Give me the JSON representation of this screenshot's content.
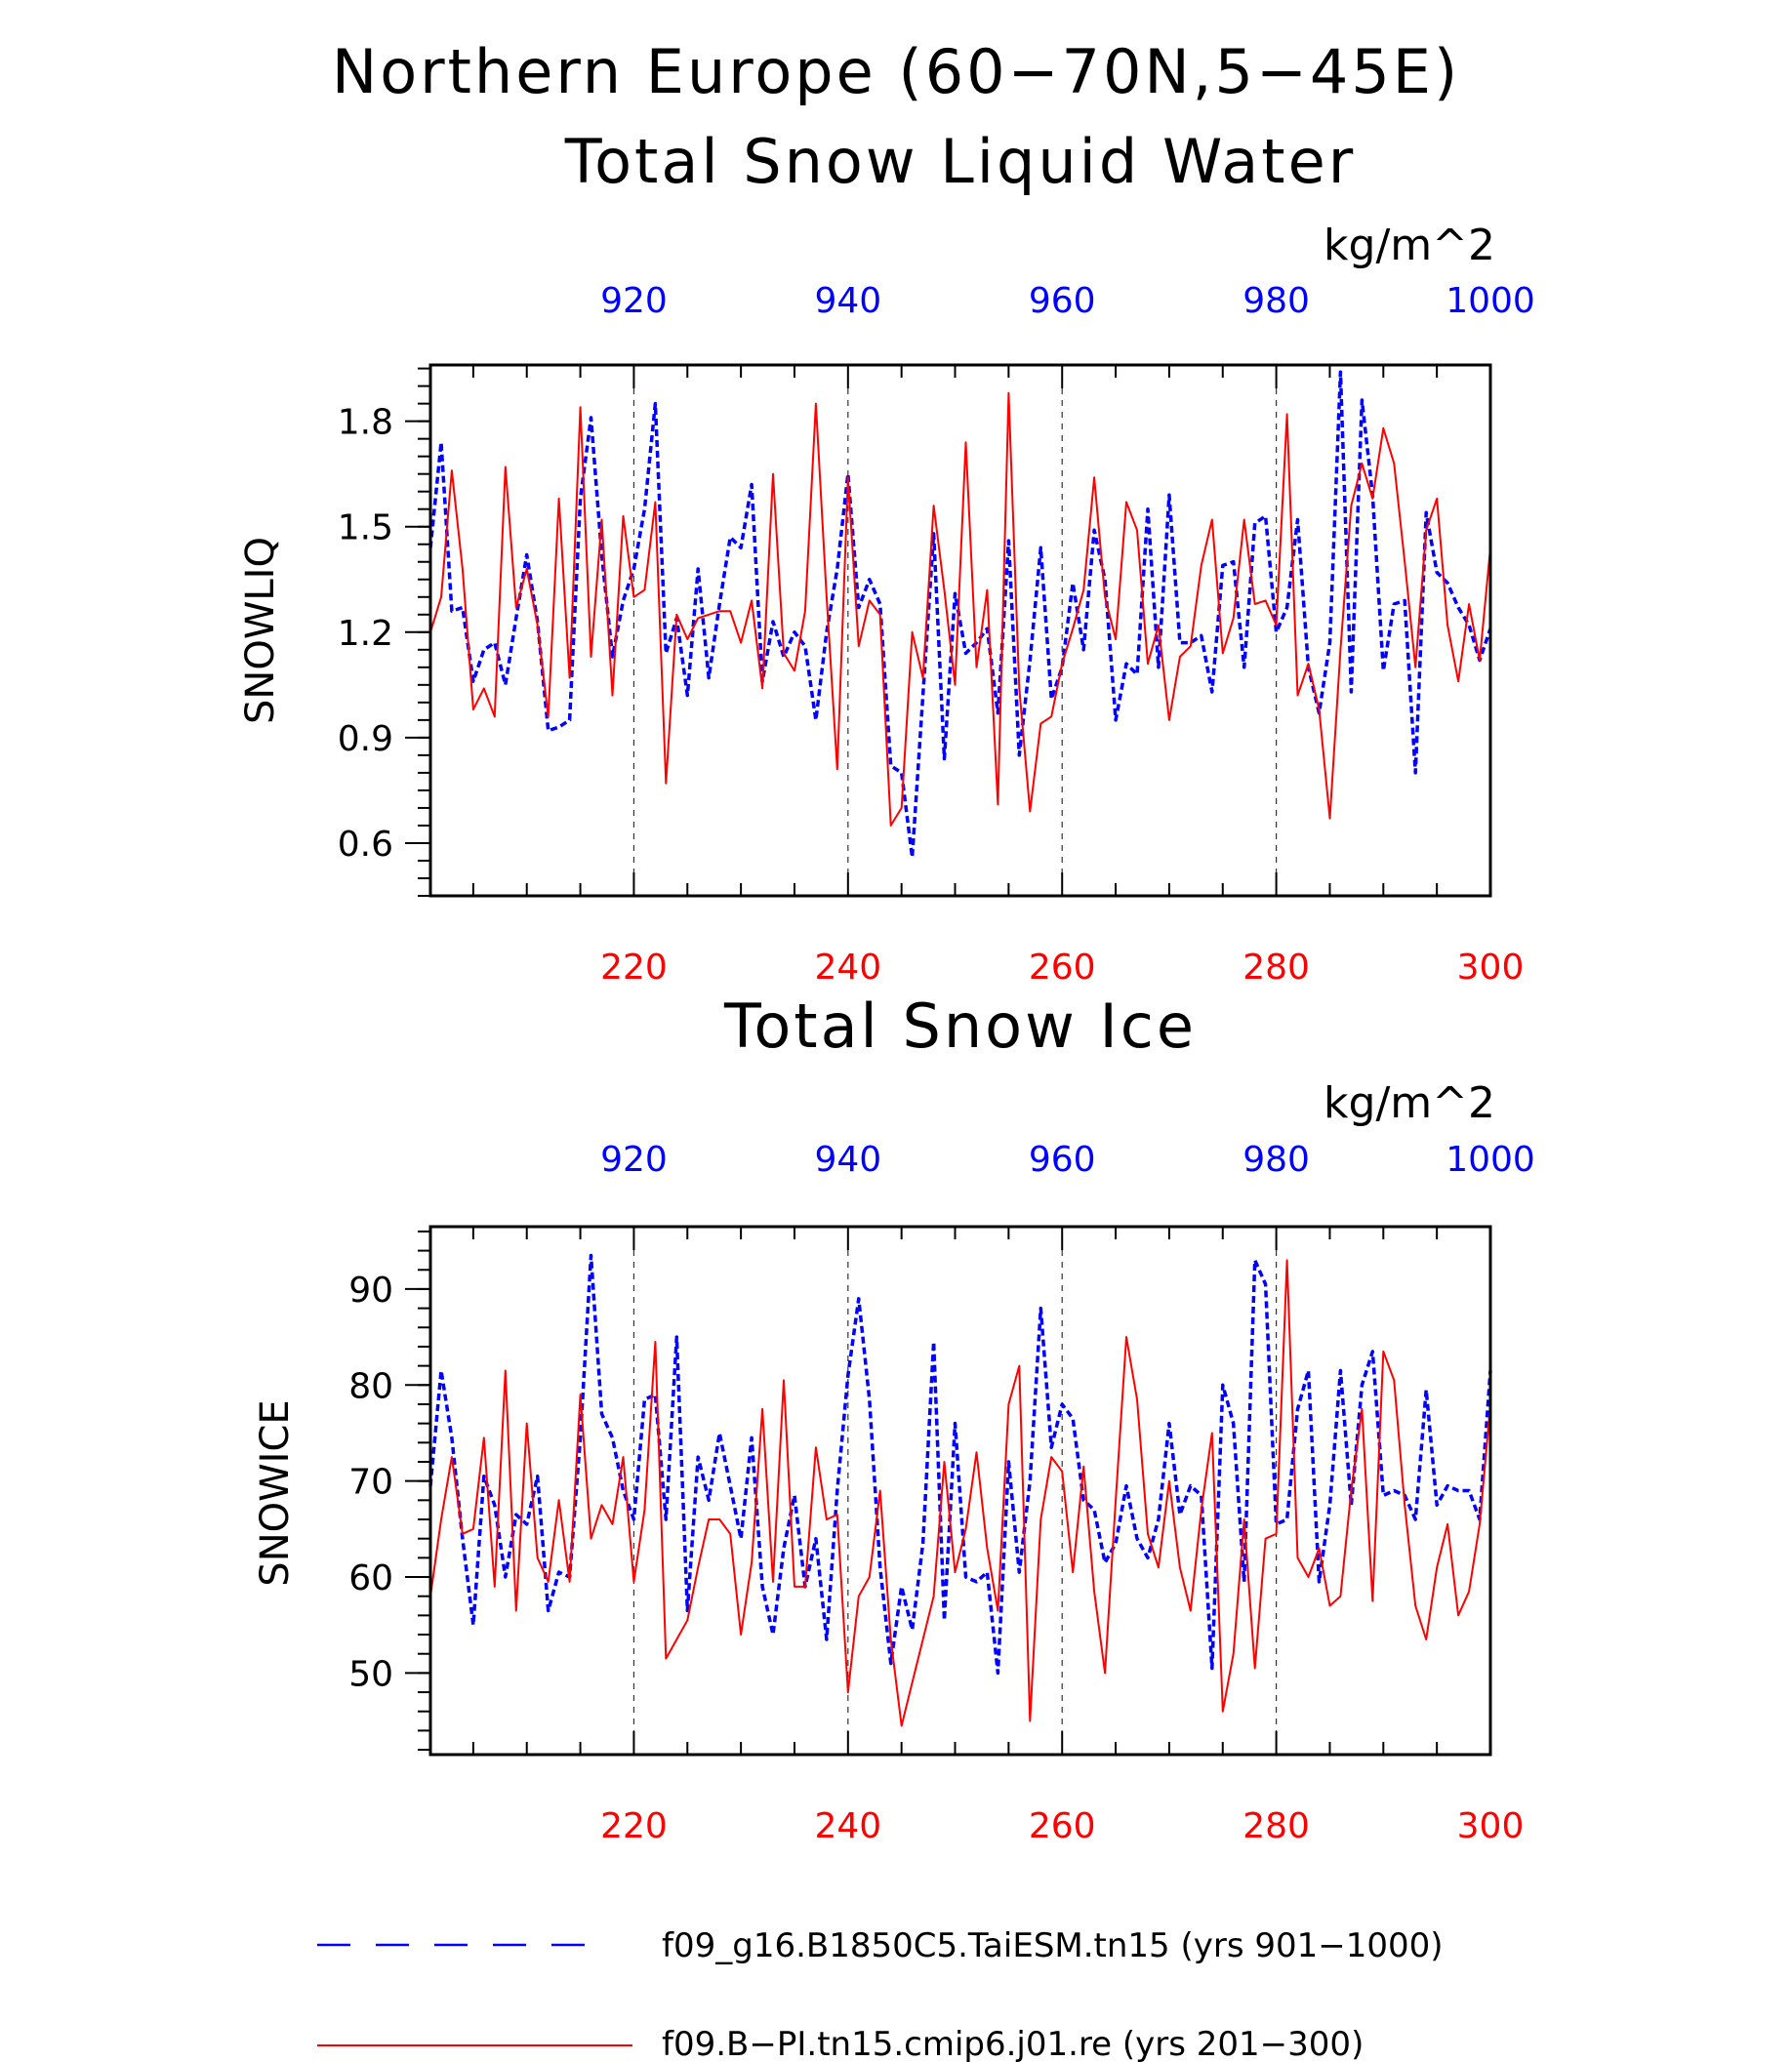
{
  "title_line1": "Northern Europe (60−70N,5−45E)",
  "title_line2": "Total Snow Liquid Water",
  "colors": {
    "series_blue": "#0000ff",
    "series_red": "#ff0000",
    "grid": "#000000"
  },
  "chart_data": [
    {
      "type": "line",
      "title": "Total Snow Liquid Water",
      "ylabel": "SNOWLIQ",
      "units": "kg/m^2",
      "ylim": [
        0.45,
        1.96
      ],
      "yticks": [
        "0.6",
        "0.9",
        "1.2",
        "1.5",
        "1.8"
      ],
      "x_bottom": {
        "range": [
          201,
          300
        ],
        "ticks": [
          "220",
          "240",
          "260",
          "280",
          "300"
        ]
      },
      "x_top": {
        "range": [
          901,
          1000
        ],
        "ticks": [
          "920",
          "940",
          "960",
          "980",
          "1000"
        ]
      },
      "grid": "vertical dashed at major ticks",
      "series": [
        {
          "name": "f09_g16.B1850C5.TaiESM.tn15 (yrs 901−1000)",
          "style": "dashed",
          "axis": "top",
          "x_start": 901,
          "values": [
            1.44,
            1.74,
            1.26,
            1.27,
            1.06,
            1.15,
            1.17,
            1.05,
            1.24,
            1.42,
            1.23,
            0.92,
            0.93,
            0.95,
            1.58,
            1.81,
            1.42,
            1.13,
            1.29,
            1.38,
            1.55,
            1.85,
            1.14,
            1.24,
            1.02,
            1.38,
            1.07,
            1.28,
            1.47,
            1.44,
            1.62,
            1.06,
            1.23,
            1.13,
            1.2,
            1.16,
            0.95,
            1.2,
            1.38,
            1.65,
            1.27,
            1.35,
            1.28,
            0.82,
            0.8,
            0.56,
            1.02,
            1.48,
            0.84,
            1.31,
            1.14,
            1.17,
            1.21,
            0.97,
            1.46,
            0.85,
            1.12,
            1.44,
            1.01,
            1.1,
            1.34,
            1.15,
            1.49,
            1.35,
            0.95,
            1.11,
            1.08,
            1.55,
            1.1,
            1.59,
            1.17,
            1.17,
            1.19,
            1.03,
            1.39,
            1.4,
            1.1,
            1.51,
            1.53,
            1.2,
            1.27,
            1.52,
            1.1,
            0.97,
            1.17,
            1.94,
            1.03,
            1.86,
            1.59,
            1.09,
            1.28,
            1.29,
            0.8,
            1.54,
            1.37,
            1.34,
            1.27,
            1.22,
            1.12,
            1.21
          ]
        },
        {
          "name": "f09.B−PI.tn15.cmip6.j01.re (yrs 201−300)",
          "style": "solid",
          "axis": "bottom",
          "x_start": 201,
          "values": [
            1.2,
            1.3,
            1.66,
            1.38,
            0.98,
            1.04,
            0.96,
            1.67,
            1.27,
            1.38,
            1.22,
            0.96,
            1.58,
            1.07,
            1.84,
            1.13,
            1.52,
            1.02,
            1.53,
            1.3,
            1.32,
            1.57,
            0.77,
            1.25,
            1.18,
            1.24,
            1.25,
            1.26,
            1.26,
            1.17,
            1.29,
            1.04,
            1.65,
            1.14,
            1.09,
            1.26,
            1.85,
            1.3,
            0.81,
            1.64,
            1.16,
            1.29,
            1.25,
            0.65,
            0.7,
            1.2,
            1.07,
            1.56,
            1.32,
            1.05,
            1.74,
            1.1,
            1.32,
            0.71,
            1.88,
            1.04,
            0.69,
            0.94,
            0.96,
            1.11,
            1.21,
            1.32,
            1.64,
            1.3,
            1.18,
            1.57,
            1.49,
            1.11,
            1.22,
            0.95,
            1.13,
            1.16,
            1.39,
            1.52,
            1.14,
            1.24,
            1.52,
            1.28,
            1.29,
            1.22,
            1.82,
            1.02,
            1.11,
            0.98,
            0.67,
            1.15,
            1.56,
            1.68,
            1.58,
            1.78,
            1.68,
            1.4,
            1.1,
            1.49,
            1.58,
            1.22,
            1.06,
            1.28,
            1.12,
            1.44
          ]
        }
      ]
    },
    {
      "type": "line",
      "title": "Total Snow Ice",
      "ylabel": "SNOWICE",
      "units": "kg/m^2",
      "ylim": [
        41.5,
        96.5
      ],
      "yticks": [
        "50",
        "60",
        "70",
        "80",
        "90"
      ],
      "x_bottom": {
        "range": [
          201,
          300
        ],
        "ticks": [
          "220",
          "240",
          "260",
          "280",
          "300"
        ]
      },
      "x_top": {
        "range": [
          901,
          1000
        ],
        "ticks": [
          "920",
          "940",
          "960",
          "980",
          "1000"
        ]
      },
      "grid": "vertical dashed at major ticks",
      "series": [
        {
          "name": "f09_g16.B1850C5.TaiESM.tn15 (yrs 901−1000)",
          "style": "dashed",
          "axis": "top",
          "x_start": 901,
          "values": [
            69.5,
            81.5,
            74.5,
            64.0,
            55.0,
            70.5,
            67.5,
            60.0,
            66.5,
            65.5,
            70.5,
            56.5,
            60.5,
            60.0,
            74.5,
            93.5,
            77.0,
            74.5,
            69.0,
            66.0,
            78.5,
            79.0,
            66.0,
            85.0,
            56.5,
            72.5,
            68.0,
            75.0,
            69.5,
            64.0,
            74.5,
            59.0,
            54.0,
            63.0,
            68.5,
            59.0,
            64.0,
            53.5,
            69.0,
            81.0,
            89.0,
            78.5,
            61.0,
            51.0,
            59.0,
            54.5,
            63.5,
            84.5,
            55.5,
            76.0,
            60.0,
            59.5,
            60.5,
            50.0,
            72.0,
            60.5,
            70.0,
            88.0,
            73.5,
            78.0,
            76.5,
            68.0,
            67.0,
            61.5,
            63.5,
            69.5,
            64.0,
            62.0,
            66.0,
            76.0,
            66.5,
            69.5,
            68.5,
            50.5,
            80.0,
            76.0,
            59.5,
            93.0,
            90.5,
            65.5,
            66.0,
            77.5,
            81.5,
            59.5,
            67.5,
            81.5,
            67.5,
            80.0,
            83.5,
            68.5,
            69.0,
            68.5,
            66.0,
            79.5,
            67.5,
            69.5,
            69.0,
            69.0,
            66.0,
            81.5
          ]
        },
        {
          "name": "f09.B−PI.tn15.cmip6.j01.re (yrs 201−300)",
          "style": "solid",
          "axis": "bottom",
          "x_start": 201,
          "values": [
            58.0,
            66.0,
            72.5,
            64.5,
            65.0,
            74.5,
            59.0,
            81.5,
            56.5,
            76.0,
            62.0,
            59.5,
            68.0,
            59.5,
            79.0,
            64.0,
            67.5,
            65.5,
            72.5,
            59.5,
            67.0,
            84.5,
            51.5,
            53.5,
            55.5,
            61.0,
            66.0,
            66.0,
            64.5,
            54.0,
            61.5,
            77.5,
            59.5,
            80.5,
            59.0,
            59.0,
            73.5,
            66.0,
            66.5,
            48.0,
            58.0,
            60.0,
            69.0,
            53.5,
            44.5,
            49.0,
            53.5,
            58.0,
            72.0,
            60.5,
            65.0,
            73.0,
            63.0,
            56.5,
            78.0,
            82.0,
            45.0,
            66.0,
            72.5,
            71.0,
            60.5,
            71.5,
            58.5,
            50.0,
            68.0,
            85.0,
            78.5,
            64.5,
            61.0,
            70.0,
            61.0,
            56.5,
            67.0,
            75.0,
            46.0,
            52.0,
            66.0,
            50.5,
            64.0,
            64.5,
            93.0,
            62.0,
            60.0,
            63.0,
            57.0,
            58.0,
            69.0,
            77.5,
            57.5,
            83.5,
            80.5,
            67.5,
            57.0,
            53.5,
            61.0,
            65.5,
            56.0,
            58.5,
            65.5,
            78.0
          ]
        }
      ]
    }
  ],
  "legend": [
    {
      "label": "f09_g16.B1850C5.TaiESM.tn15 (yrs 901−1000)",
      "style": "dashed",
      "color": "#0000ff"
    },
    {
      "label": "f09.B−PI.tn15.cmip6.j01.re (yrs 201−300)",
      "style": "solid",
      "color": "#ff0000"
    }
  ]
}
